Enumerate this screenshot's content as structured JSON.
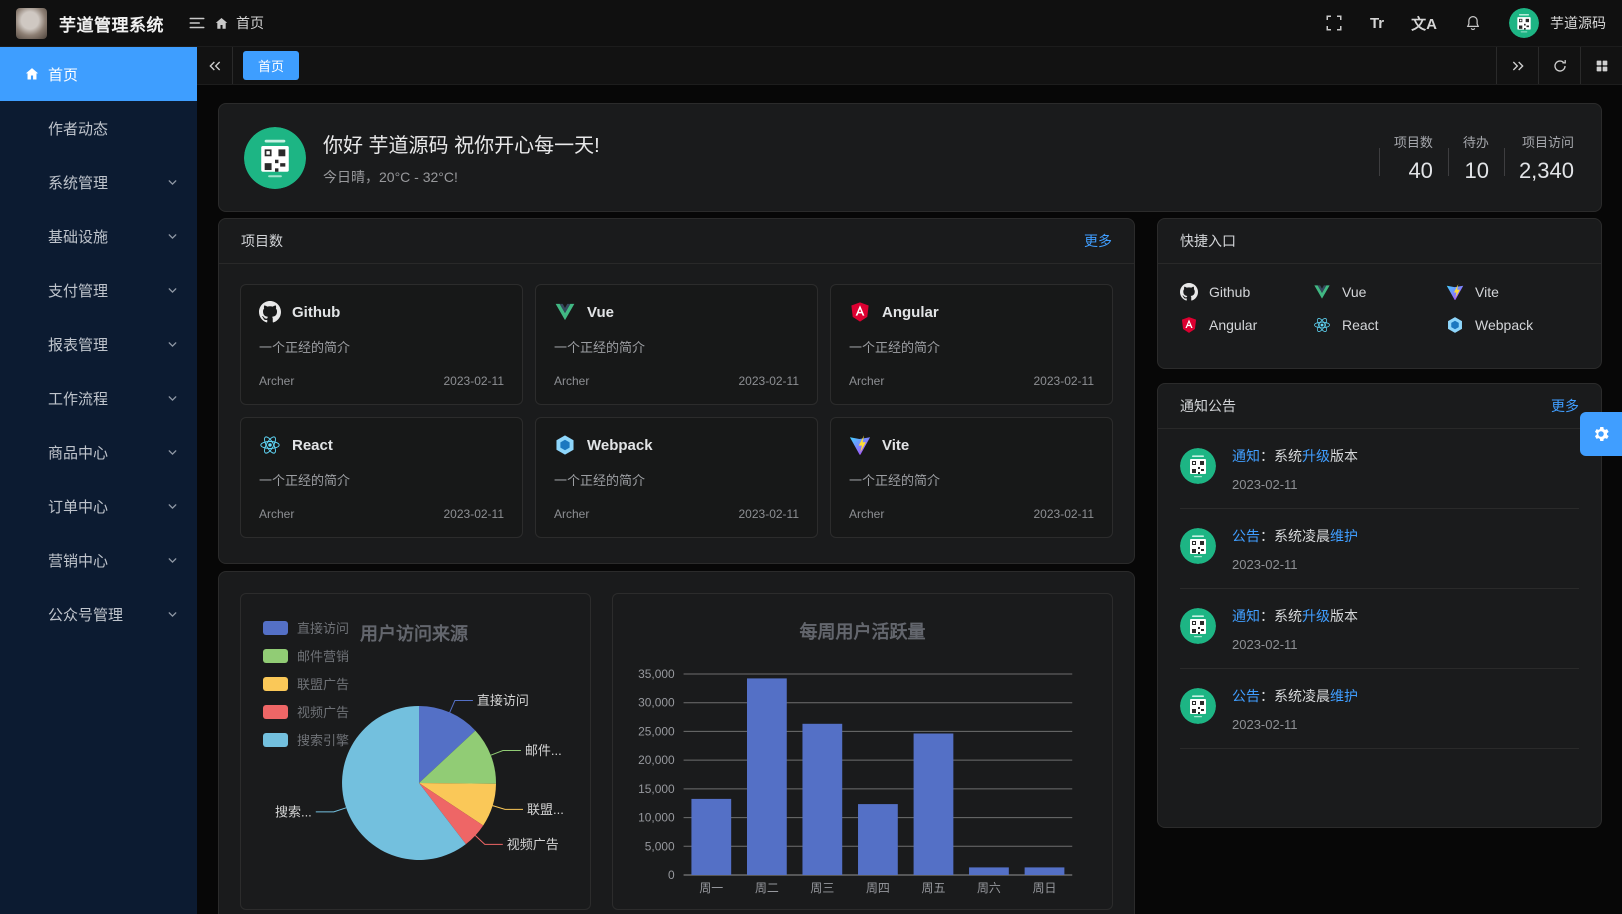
{
  "app": {
    "title": "芋道管理系统",
    "username": "芋道源码"
  },
  "header": {
    "breadcrumb": "首页",
    "font_icon_glyph": "Tr",
    "locale_icon_glyph": "文A"
  },
  "sidebar": {
    "items": [
      {
        "label": "首页",
        "icon": "home",
        "active": true
      },
      {
        "label": "作者动态"
      },
      {
        "label": "系统管理",
        "expandable": true
      },
      {
        "label": "基础设施",
        "expandable": true
      },
      {
        "label": "支付管理",
        "expandable": true
      },
      {
        "label": "报表管理",
        "expandable": true
      },
      {
        "label": "工作流程",
        "expandable": true
      },
      {
        "label": "商品中心",
        "expandable": true
      },
      {
        "label": "订单中心",
        "expandable": true
      },
      {
        "label": "营销中心",
        "expandable": true
      },
      {
        "label": "公众号管理",
        "expandable": true
      }
    ]
  },
  "tabbar": {
    "active_tab": "首页"
  },
  "welcome": {
    "greeting": "你好 芋道源码 祝你开心每一天!",
    "weather": "今日晴，20°C - 32°C!",
    "stats": [
      {
        "label": "项目数",
        "value": "40"
      },
      {
        "label": "待办",
        "value": "10"
      },
      {
        "label": "项目访问",
        "value": "2,340"
      }
    ]
  },
  "projects": {
    "title": "项目数",
    "more_label": "更多",
    "items": [
      {
        "name": "Github",
        "icon": "github",
        "desc": "一个正经的简介",
        "author": "Archer",
        "date": "2023-02-11"
      },
      {
        "name": "Vue",
        "icon": "vue",
        "desc": "一个正经的简介",
        "author": "Archer",
        "date": "2023-02-11"
      },
      {
        "name": "Angular",
        "icon": "angular",
        "desc": "一个正经的简介",
        "author": "Archer",
        "date": "2023-02-11"
      },
      {
        "name": "React",
        "icon": "react",
        "desc": "一个正经的简介",
        "author": "Archer",
        "date": "2023-02-11"
      },
      {
        "name": "Webpack",
        "icon": "webpack",
        "desc": "一个正经的简介",
        "author": "Archer",
        "date": "2023-02-11"
      },
      {
        "name": "Vite",
        "icon": "vite",
        "desc": "一个正经的简介",
        "author": "Archer",
        "date": "2023-02-11"
      }
    ]
  },
  "shortcuts": {
    "title": "快捷入口",
    "items": [
      {
        "name": "Github",
        "icon": "github"
      },
      {
        "name": "Vue",
        "icon": "vue"
      },
      {
        "name": "Vite",
        "icon": "vite"
      },
      {
        "name": "Angular",
        "icon": "angular"
      },
      {
        "name": "React",
        "icon": "react"
      },
      {
        "name": "Webpack",
        "icon": "webpack"
      }
    ]
  },
  "notices": {
    "title": "通知公告",
    "more_label": "更多",
    "items": [
      {
        "tag": "通知",
        "sep": "：",
        "text": "系统",
        "highlight": "升级",
        "tail": "版本",
        "date": "2023-02-11"
      },
      {
        "tag": "公告",
        "sep": "：",
        "text": "系统凌晨",
        "highlight": "维护",
        "tail": "",
        "date": "2023-02-11"
      },
      {
        "tag": "通知",
        "sep": "：",
        "text": "系统",
        "highlight": "升级",
        "tail": "版本",
        "date": "2023-02-11"
      },
      {
        "tag": "公告",
        "sep": "：",
        "text": "系统凌晨",
        "highlight": "维护",
        "tail": "",
        "date": "2023-02-11"
      }
    ]
  },
  "colors": {
    "primary": "#409eff",
    "sidebar_bg": "#0c1b31",
    "card_bg": "#1a1b1c",
    "page_bg": "#070707",
    "bar_fill": "#5470c6"
  },
  "chart_data": [
    {
      "type": "pie",
      "title": "用户访问来源",
      "legend_position": "left",
      "legend": [
        "直接访问",
        "邮件营销",
        "联盟广告",
        "视频广告",
        "搜索引擎"
      ],
      "series": [
        {
          "name": "直接访问",
          "value": 335,
          "color": "#5470c6",
          "label": "直接访问"
        },
        {
          "name": "邮件营销",
          "value": 310,
          "color": "#91cc75",
          "label": "邮件..."
        },
        {
          "name": "联盟广告",
          "value": 234,
          "color": "#fac858",
          "label": "联盟..."
        },
        {
          "name": "视频广告",
          "value": 135,
          "color": "#ee6666",
          "label": "视频广告"
        },
        {
          "name": "搜索引擎",
          "value": 1548,
          "color": "#73c0de",
          "label": "搜索..."
        }
      ]
    },
    {
      "type": "bar",
      "title": "每周用户活跃量",
      "categories": [
        "周一",
        "周二",
        "周三",
        "周四",
        "周五",
        "周六",
        "周日"
      ],
      "values": [
        13253,
        34235,
        26321,
        12340,
        24643,
        1322,
        1324
      ],
      "ylim": [
        0,
        35000
      ],
      "ytick_step": 5000,
      "bar_color": "#5470c6",
      "grid": true
    }
  ]
}
